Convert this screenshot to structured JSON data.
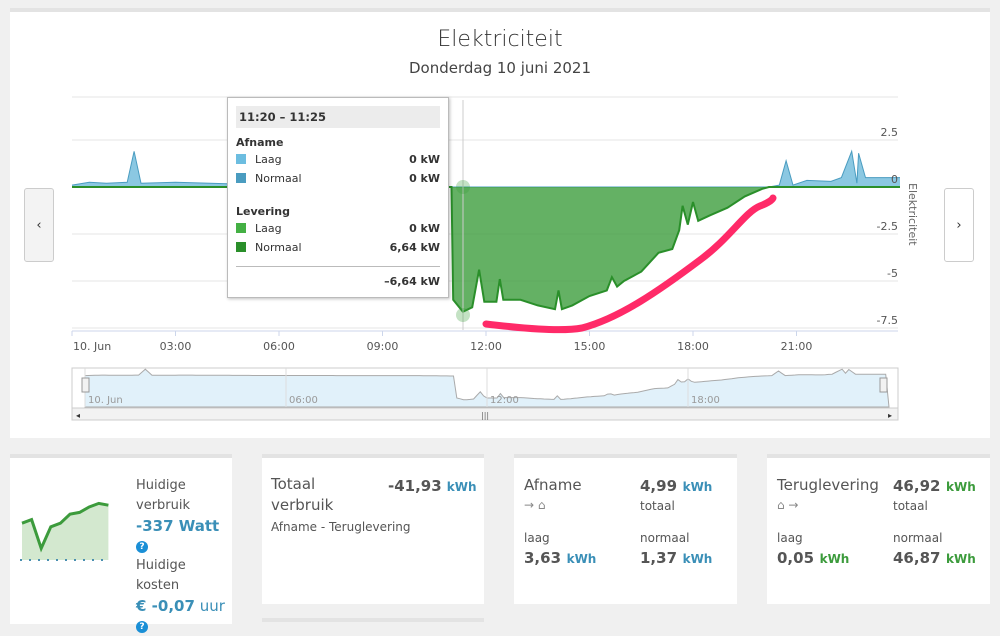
{
  "header": {
    "title": "Elektriciteit",
    "subtitle": "Donderdag 10 juni 2021",
    "prev": "‹",
    "next": "›"
  },
  "chart_data": {
    "type": "area",
    "y_axis_title": "Elektriciteit",
    "ylim": [
      -7.5,
      2.5
    ],
    "y_ticks": [
      "2.5",
      "0",
      "-2.5",
      "-5",
      "-7.5"
    ],
    "x_ticks": [
      "10. Jun",
      "03:00",
      "06:00",
      "09:00",
      "12:00",
      "15:00",
      "18:00",
      "21:00"
    ],
    "navigator_ticks": [
      "10. Jun",
      "06:00",
      "12:00",
      "18:00"
    ],
    "series": [
      {
        "name": "Afname",
        "color": "#5ab0d6",
        "points": [
          [
            0,
            0.1
          ],
          [
            0.5,
            0.25
          ],
          [
            1,
            0.2
          ],
          [
            1.6,
            0.25
          ],
          [
            1.8,
            1.9
          ],
          [
            2,
            0.2
          ],
          [
            3,
            0.25
          ],
          [
            4,
            0.2
          ],
          [
            5,
            0.15
          ],
          [
            6,
            0.15
          ],
          [
            7,
            0.15
          ],
          [
            8,
            0.1
          ],
          [
            9,
            0.1
          ],
          [
            10,
            0.1
          ],
          [
            11,
            0
          ],
          [
            20.2,
            0
          ],
          [
            20.5,
            0.1
          ],
          [
            20.7,
            1.4
          ],
          [
            20.9,
            0.1
          ],
          [
            21.3,
            0.35
          ],
          [
            22,
            0.3
          ],
          [
            22.3,
            0.5
          ],
          [
            22.6,
            1.9
          ],
          [
            22.75,
            0.2
          ],
          [
            22.8,
            1.8
          ],
          [
            23,
            0.5
          ],
          [
            24,
            0.5
          ]
        ]
      },
      {
        "name": "Levering",
        "color": "#3d9e3d",
        "points": [
          [
            0,
            0
          ],
          [
            11,
            0
          ],
          [
            11.05,
            -6.0
          ],
          [
            11.33,
            -6.64
          ],
          [
            11.6,
            -6.4
          ],
          [
            11.8,
            -4.4
          ],
          [
            11.95,
            -6.1
          ],
          [
            12.3,
            -6.1
          ],
          [
            12.4,
            -4.9
          ],
          [
            12.5,
            -6.0
          ],
          [
            13,
            -6.0
          ],
          [
            13.5,
            -6.3
          ],
          [
            14,
            -6.5
          ],
          [
            14.1,
            -5.5
          ],
          [
            14.2,
            -6.5
          ],
          [
            14.5,
            -6.3
          ],
          [
            15,
            -5.8
          ],
          [
            15.5,
            -5.5
          ],
          [
            15.65,
            -4.8
          ],
          [
            15.8,
            -5.3
          ],
          [
            16,
            -5.0
          ],
          [
            16.5,
            -4.5
          ],
          [
            17,
            -3.5
          ],
          [
            17.4,
            -3.3
          ],
          [
            17.6,
            -2.3
          ],
          [
            17.7,
            -1.0
          ],
          [
            17.85,
            -2.0
          ],
          [
            18,
            -0.8
          ],
          [
            18.15,
            -1.8
          ],
          [
            18.5,
            -1.5
          ],
          [
            19,
            -1.1
          ],
          [
            19.5,
            -0.5
          ],
          [
            20,
            -0.1
          ],
          [
            20.2,
            0
          ],
          [
            24,
            0
          ]
        ]
      }
    ]
  },
  "tooltip": {
    "time": "11:20 – 11:25",
    "group1": "Afname",
    "g1": [
      {
        "label": "Laag",
        "value": "0 kW",
        "color": "#6cbde0"
      },
      {
        "label": "Normaal",
        "value": "0 kW",
        "color": "#4a9cc0"
      }
    ],
    "group2": "Levering",
    "g2": [
      {
        "label": "Laag",
        "value": "0 kW",
        "color": "#44b044"
      },
      {
        "label": "Normaal",
        "value": "6,64 kW",
        "color": "#2a8f2a"
      }
    ],
    "total": "–6,64 kW"
  },
  "current": {
    "label1": "Huidige",
    "label2": "verbruik",
    "value": "-337 Watt",
    "cost_label": "Huidige kosten",
    "cost": "€ -0,07",
    "cost_unit": "uur",
    "help": "?",
    "spark": [
      -0.2,
      -0.1,
      -0.9,
      -0.3,
      -0.2,
      0.05,
      0.1,
      0.25,
      0.35,
      0.3
    ]
  },
  "total": {
    "title1": "Totaal",
    "title2": "verbruik",
    "value": "-41,93",
    "unit": "kWh",
    "desc": "Afname - Teruglevering"
  },
  "afname": {
    "title": "Afname",
    "icons": "→ ⌂",
    "value": "4,99",
    "unit": "kWh",
    "total_label": "totaal",
    "laag_label": "laag",
    "laag": "3,63",
    "normaal_label": "normaal",
    "normaal": "1,37"
  },
  "terug": {
    "title": "Teruglevering",
    "icons": "⌂ →",
    "value": "46,92",
    "unit": "kWh",
    "total_label": "totaal",
    "laag_label": "laag",
    "laag": "0,05",
    "normaal_label": "normaal",
    "normaal": "46,87"
  }
}
